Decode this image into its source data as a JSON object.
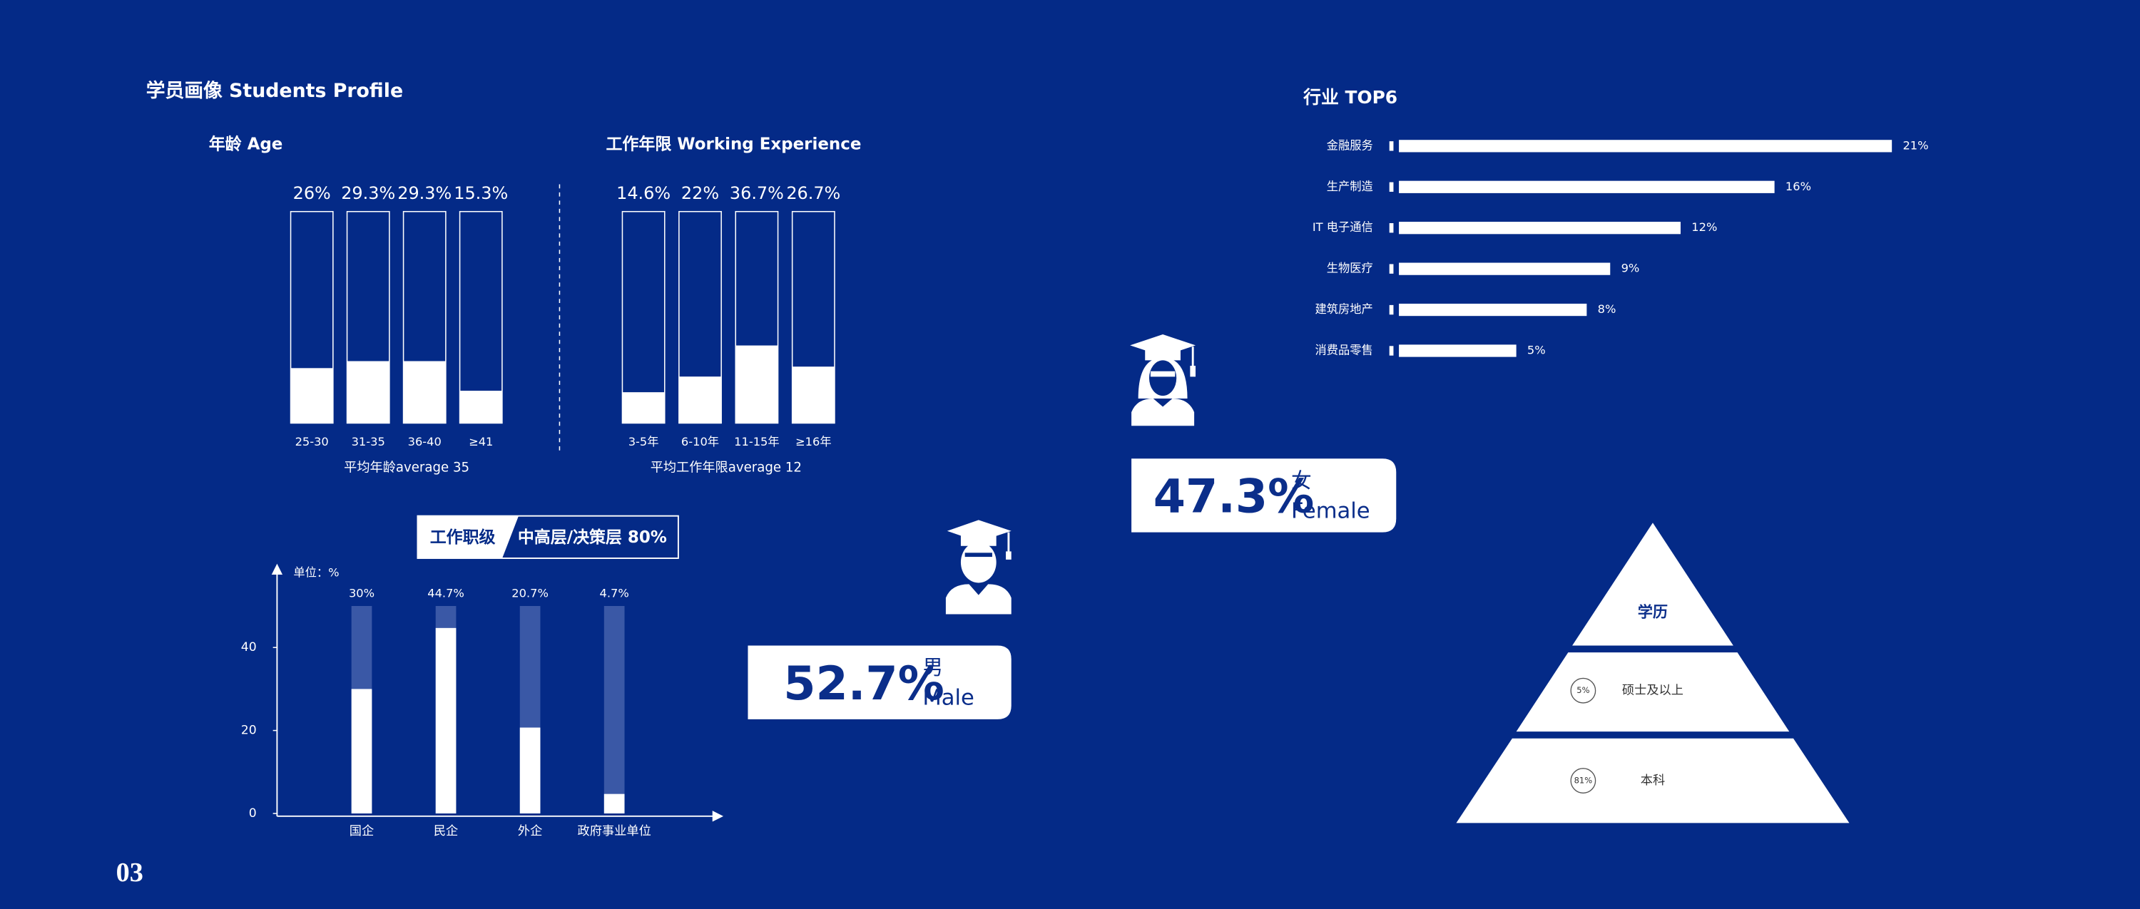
{
  "header": {
    "title": "学员画像  Students Profile",
    "page": "03"
  },
  "chart_data": [
    {
      "type": "bar",
      "title": "年龄  Age",
      "note": "平均年龄average 35",
      "categories": [
        "25-30",
        "31-35",
        "36-40",
        "≥41"
      ],
      "values": [
        26,
        29.3,
        29.3,
        15.3
      ],
      "value_labels": [
        "26%",
        "29.3%",
        "29.3%",
        "15.3%"
      ],
      "ylim": [
        0,
        100
      ],
      "color": "#ffffff"
    },
    {
      "type": "bar",
      "title": "工作年限  Working Experience",
      "note": "平均工作年限average 12",
      "categories": [
        "3-5年",
        "6-10年",
        "11-15年",
        "≥16年"
      ],
      "values": [
        14.6,
        22,
        36.7,
        26.7
      ],
      "value_labels": [
        "14.6%",
        "22%",
        "36.7%",
        "26.7%"
      ],
      "ylim": [
        0,
        100
      ],
      "color": "#ffffff"
    },
    {
      "type": "bar",
      "title": "工作职级",
      "subtitle": "中高层/决策层 80%",
      "y_label": "单位：%",
      "categories": [
        "国企",
        "民企",
        "外企",
        "政府事业单位"
      ],
      "values": [
        30,
        44.7,
        20.7,
        4.7
      ],
      "value_labels": [
        "30%",
        "44.7%",
        "20.7%",
        "4.7%"
      ],
      "ylim": [
        0,
        50
      ],
      "yticks": [
        0,
        20,
        40
      ],
      "color": "#ffffff",
      "track_color": "#3a58a6"
    },
    {
      "type": "barh",
      "title": "行业  TOP6",
      "categories": [
        "金融服务",
        "生产制造",
        "IT 电子通信",
        "生物医疗",
        "建筑房地产",
        "消费品零售"
      ],
      "values": [
        21,
        16,
        12,
        9,
        8,
        5
      ],
      "value_labels": [
        "21%",
        "16%",
        "12%",
        "9%",
        "8%",
        "5%"
      ],
      "xlim": [
        0,
        25
      ],
      "color": "#ffffff"
    }
  ],
  "gender": {
    "male": {
      "percent": "52.7%",
      "zh": "男",
      "en": "Male"
    },
    "female": {
      "percent": "47.3%",
      "zh": "女",
      "en": "Female"
    }
  },
  "education": {
    "title": "学历",
    "levels": [
      {
        "percent": "5%",
        "label": "硕士及以上"
      },
      {
        "percent": "81%",
        "label": "本科"
      }
    ]
  }
}
